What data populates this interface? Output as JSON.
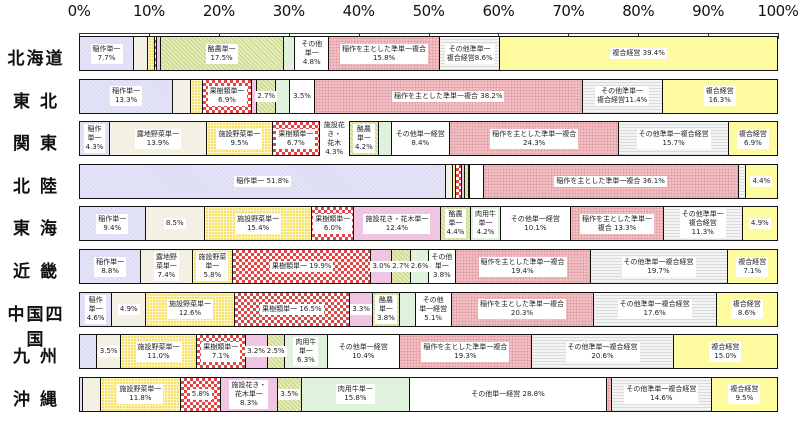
{
  "chart_data": {
    "type": "bar",
    "orientation": "horizontal",
    "stacked": "percent",
    "title": "",
    "xlabel": "",
    "ylabel": "",
    "xlim": [
      0,
      100
    ],
    "x_ticks": [
      "0%",
      "10%",
      "20%",
      "30%",
      "40%",
      "50%",
      "60%",
      "70%",
      "80%",
      "90%",
      "100%"
    ],
    "grid": false,
    "legend": "none (labels inside segments)",
    "segment_types": [
      "稲作単一",
      "露地野菜単一",
      "施設野菜単一",
      "果樹類単一",
      "施設花き・花木単一",
      "酪農単一",
      "肉用牛単一",
      "その他単一経営",
      "稲作を主とした準単一複合",
      "その他準単一複合経営",
      "複合経営"
    ],
    "categories": [
      "北海道",
      "東 北",
      "関 東",
      "北 陸",
      "東 海",
      "近 畿",
      "中国四国",
      "九 州",
      "沖 縄"
    ],
    "rows": [
      {
        "label": "北海道",
        "segments": [
          {
            "type": 0,
            "value": 7.7,
            "text": "稲作単一\n7.7%"
          },
          {
            "type": 1,
            "value": 2.0,
            "text": ""
          },
          {
            "type": 2,
            "value": 1.0,
            "text": ""
          },
          {
            "type": 3,
            "value": 0.3,
            "text": ""
          },
          {
            "type": 4,
            "value": 0.5,
            "text": ""
          },
          {
            "type": 5,
            "value": 17.5,
            "text": "酪農単一\n17.5%"
          },
          {
            "type": 6,
            "value": 1.7,
            "text": ""
          },
          {
            "type": 7,
            "value": 4.8,
            "text": "その他\n単一\n4.8%"
          },
          {
            "type": 8,
            "value": 15.8,
            "text": "稲作を主とした準単一複合\n15.8%"
          },
          {
            "type": 9,
            "value": 8.6,
            "text": "その他準単一\n複合経営8.6%"
          },
          {
            "type": 10,
            "value": 39.4,
            "text": "複合経営 39.4%"
          }
        ]
      },
      {
        "label": "東 北",
        "segments": [
          {
            "type": 0,
            "value": 13.3,
            "text": "稲作単一\n13.3%"
          },
          {
            "type": 1,
            "value": 2.5,
            "text": ""
          },
          {
            "type": 2,
            "value": 1.8,
            "text": ""
          },
          {
            "type": 3,
            "value": 6.9,
            "text": "果樹類単一\n6.9%"
          },
          {
            "type": 4,
            "value": 0.8,
            "text": ""
          },
          {
            "type": 5,
            "value": 2.7,
            "text": "2.7%"
          },
          {
            "type": 6,
            "value": 2.0,
            "text": ""
          },
          {
            "type": 7,
            "value": 3.5,
            "text": "3.5%"
          },
          {
            "type": 8,
            "value": 38.2,
            "text": "稲作を主とした準単一複合 38.2%"
          },
          {
            "type": 9,
            "value": 11.4,
            "text": "その他準単一\n複合経営11.4%"
          },
          {
            "type": 10,
            "value": 16.3,
            "text": "複合経営\n16.3%"
          }
        ]
      },
      {
        "label": "関 東",
        "segments": [
          {
            "type": 0,
            "value": 4.3,
            "text": "稲作\n単一\n4.3%"
          },
          {
            "type": 1,
            "value": 13.9,
            "text": "露地野菜単一\n13.9%"
          },
          {
            "type": 2,
            "value": 9.5,
            "text": "施設野菜単一\n9.5%"
          },
          {
            "type": 3,
            "value": 6.7,
            "text": "果樹類単一\n6.7%"
          },
          {
            "type": 4,
            "value": 4.3,
            "text": "施設花き・\n花木\n4.3%"
          },
          {
            "type": 5,
            "value": 4.2,
            "text": "酪農\n単一\n4.2%"
          },
          {
            "type": 6,
            "value": 1.8,
            "text": ""
          },
          {
            "type": 7,
            "value": 8.4,
            "text": "その他単一経営\n8.4%"
          },
          {
            "type": 8,
            "value": 24.3,
            "text": "稲作を主とした準単一複合\n24.3%"
          },
          {
            "type": 9,
            "value": 15.7,
            "text": "その他準単一複合経営\n15.7%"
          },
          {
            "type": 10,
            "value": 6.9,
            "text": "複合経営\n6.9%"
          }
        ]
      },
      {
        "label": "北 陸",
        "segments": [
          {
            "type": 0,
            "value": 51.8,
            "text": "稲作単一 51.8%"
          },
          {
            "type": 1,
            "value": 1.0,
            "text": ""
          },
          {
            "type": 2,
            "value": 0.4,
            "text": ""
          },
          {
            "type": 3,
            "value": 0.8,
            "text": ""
          },
          {
            "type": 4,
            "value": 0.4,
            "text": ""
          },
          {
            "type": 5,
            "value": 0.6,
            "text": ""
          },
          {
            "type": 6,
            "value": 0.2,
            "text": ""
          },
          {
            "type": 7,
            "value": 1.9,
            "text": ""
          },
          {
            "type": 8,
            "value": 36.1,
            "text": "稲作を主とした準単一複合 36.1%"
          },
          {
            "type": 9,
            "value": 1.0,
            "text": ""
          },
          {
            "type": 10,
            "value": 4.4,
            "text": "4.4%"
          }
        ]
      },
      {
        "label": "東 海",
        "segments": [
          {
            "type": 0,
            "value": 9.4,
            "text": "稲作単一\n9.4%"
          },
          {
            "type": 1,
            "value": 8.5,
            "text": "8.5%"
          },
          {
            "type": 2,
            "value": 15.4,
            "text": "施設野菜単一\n15.4%"
          },
          {
            "type": 3,
            "value": 6.0,
            "text": "果樹類単一\n6.0%"
          },
          {
            "type": 4,
            "value": 12.4,
            "text": "施設花き・花木単一\n12.4%"
          },
          {
            "type": 5,
            "value": 4.4,
            "text": "酪農\n単一\n4.4%"
          },
          {
            "type": 6,
            "value": 4.2,
            "text": "肉用牛\n単一\n4.2%"
          },
          {
            "type": 7,
            "value": 10.1,
            "text": "その他単一経営\n10.1%"
          },
          {
            "type": 8,
            "value": 13.3,
            "text": "稲作を主とした準単一\n複合 13.3%"
          },
          {
            "type": 9,
            "value": 11.3,
            "text": "その他準単一\n複合経営\n11.3%"
          },
          {
            "type": 10,
            "value": 4.9,
            "text": "4.9%"
          }
        ]
      },
      {
        "label": "近 畿",
        "segments": [
          {
            "type": 0,
            "value": 8.8,
            "text": "稲作単一\n8.8%"
          },
          {
            "type": 1,
            "value": 7.4,
            "text": "露地野\n菜単一\n7.4%"
          },
          {
            "type": 2,
            "value": 5.8,
            "text": "施設野菜\n単一\n5.8%"
          },
          {
            "type": 3,
            "value": 19.9,
            "text": "果樹類単一 19.9%"
          },
          {
            "type": 4,
            "value": 3.0,
            "text": "3.0%"
          },
          {
            "type": 5,
            "value": 2.7,
            "text": "2.7%"
          },
          {
            "type": 6,
            "value": 2.6,
            "text": "2.6%"
          },
          {
            "type": 7,
            "value": 3.8,
            "text": "その他\n単一\n3.8%"
          },
          {
            "type": 8,
            "value": 19.4,
            "text": "稲作を主とした準単一複合\n19.4%"
          },
          {
            "type": 9,
            "value": 19.7,
            "text": "その他準単一複合経営\n19.7%"
          },
          {
            "type": 10,
            "value": 7.1,
            "text": "複合経営\n7.1%"
          }
        ]
      },
      {
        "label": "中国四国",
        "segments": [
          {
            "type": 0,
            "value": 4.6,
            "text": "稲作\n単一\n4.6%"
          },
          {
            "type": 1,
            "value": 4.9,
            "text": "4.9%"
          },
          {
            "type": 2,
            "value": 12.6,
            "text": "施設野菜単一\n12.6%"
          },
          {
            "type": 3,
            "value": 16.5,
            "text": "果樹類単一 16.5%"
          },
          {
            "type": 4,
            "value": 3.3,
            "text": "3.3%"
          },
          {
            "type": 5,
            "value": 3.8,
            "text": "酪農\n単一\n3.8%"
          },
          {
            "type": 6,
            "value": 2.3,
            "text": ""
          },
          {
            "type": 7,
            "value": 5.1,
            "text": "その他\n単一経営\n5.1%"
          },
          {
            "type": 8,
            "value": 20.3,
            "text": "稲作を主とした準単一複合\n20.3%"
          },
          {
            "type": 9,
            "value": 17.6,
            "text": "その他準単一複合経営\n17.6%"
          },
          {
            "type": 10,
            "value": 8.6,
            "text": "複合経営\n8.6%"
          }
        ]
      },
      {
        "label": "九 州",
        "segments": [
          {
            "type": 0,
            "value": 2.5,
            "text": ""
          },
          {
            "type": 1,
            "value": 3.5,
            "text": "3.5%"
          },
          {
            "type": 2,
            "value": 11.0,
            "text": "施設野菜単一\n11.0%"
          },
          {
            "type": 3,
            "value": 7.1,
            "text": "果樹類単一\n7.1%"
          },
          {
            "type": 4,
            "value": 3.2,
            "text": "3.2%"
          },
          {
            "type": 5,
            "value": 2.5,
            "text": "2.5%"
          },
          {
            "type": 6,
            "value": 6.3,
            "text": "肉用牛\n単一\n6.3%"
          },
          {
            "type": 7,
            "value": 10.4,
            "text": "その他単一経営\n10.4%"
          },
          {
            "type": 8,
            "value": 19.3,
            "text": "稲作を主とした準単一複合\n19.3%"
          },
          {
            "type": 9,
            "value": 20.6,
            "text": "その他準単一複合経営\n20.6%"
          },
          {
            "type": 10,
            "value": 15.0,
            "text": "複合経営\n15.0%"
          }
        ]
      },
      {
        "label": "沖 縄",
        "segments": [
          {
            "type": 0,
            "value": 0.5,
            "text": ""
          },
          {
            "type": 1,
            "value": 2.5,
            "text": ""
          },
          {
            "type": 2,
            "value": 11.8,
            "text": "施設野菜単一\n11.8%"
          },
          {
            "type": 3,
            "value": 5.8,
            "text": "5.8%"
          },
          {
            "type": 4,
            "value": 8.3,
            "text": "施設花き・\n花木単一\n8.3%"
          },
          {
            "type": 5,
            "value": 3.5,
            "text": "3.5%"
          },
          {
            "type": 6,
            "value": 15.8,
            "text": "肉用牛単一\n15.8%"
          },
          {
            "type": 7,
            "value": 28.8,
            "text": "その他単一経営 28.8%"
          },
          {
            "type": 8,
            "value": 0.7,
            "text": ""
          },
          {
            "type": 9,
            "value": 14.6,
            "text": "その他準単一複合経営\n14.6%"
          },
          {
            "type": 10,
            "value": 9.5,
            "text": "複合経営\n9.5%"
          }
        ]
      }
    ]
  },
  "axis": {
    "ticks": [
      "0%",
      "10%",
      "20%",
      "30%",
      "40%",
      "50%",
      "60%",
      "70%",
      "80%",
      "90%",
      "100%"
    ]
  },
  "colors": {
    "稲作単一": "#dcdcf4",
    "露地野菜単一": "#f5f0e4",
    "施設野菜単一": "#f7e36a",
    "果樹類単一": "#e04848",
    "施設花き・花木単一": "#efc5e2",
    "酪農単一": "#e4ecb8",
    "肉用牛単一": "#dff3dc",
    "その他単一経営": "#ffffff",
    "稲作を主とした準単一複合": "#efc0c4",
    "その他準単一複合経営": "#f4f4f4",
    "複合経営": "#fdfaa0"
  }
}
